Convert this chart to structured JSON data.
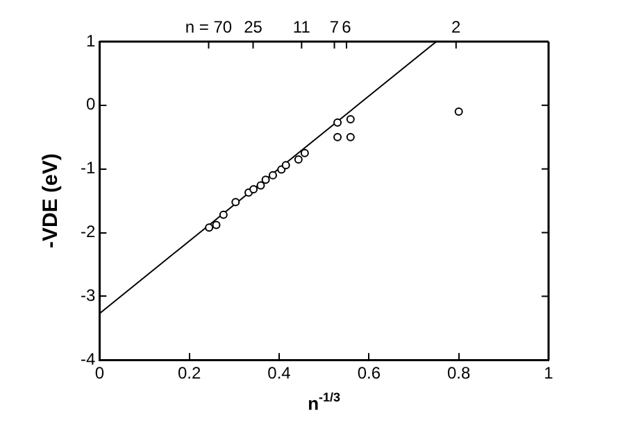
{
  "chart_data": {
    "type": "scatter",
    "xlabel": "n$^{-1/3}$",
    "ylabel": "-VDE (eV)",
    "xlim": [
      0,
      1
    ],
    "xticks": [
      0,
      0.2,
      0.4,
      0.6,
      0.8,
      1
    ],
    "ylim": [
      -4,
      1
    ],
    "yticks": [
      -4,
      -3,
      -2,
      -1,
      0,
      1
    ],
    "annotations": [
      {
        "text": "n = 70",
        "x": 0.243
      },
      {
        "text": "25",
        "x": 0.342
      },
      {
        "text": "11",
        "x": 0.45
      },
      {
        "text": "7",
        "x": 0.523
      },
      {
        "text": "6",
        "x": 0.55
      },
      {
        "text": "2",
        "x": 0.794
      }
    ],
    "grid": false,
    "legend": false,
    "series": [
      {
        "color": "#000000",
        "marker": "circle",
        "x": [
          0.244,
          0.26,
          0.276,
          0.303,
          0.332,
          0.343,
          0.359,
          0.37,
          0.386,
          0.405,
          0.415,
          0.443,
          0.457,
          0.53,
          0.53,
          0.559,
          0.559,
          0.8
        ],
        "values": [
          -1.92,
          -1.88,
          -1.72,
          -1.52,
          -1.37,
          -1.32,
          -1.26,
          -1.17,
          -1.1,
          -1.01,
          -0.94,
          -0.85,
          -0.75,
          -0.27,
          -0.5,
          -0.22,
          -0.5,
          -0.1
        ]
      },
      {
        "type": "line",
        "color": "#000000",
        "marker": "none",
        "line_style": "solid",
        "x": [
          0,
          0.75
        ],
        "values": [
          -3.27,
          1
        ]
      }
    ]
  }
}
